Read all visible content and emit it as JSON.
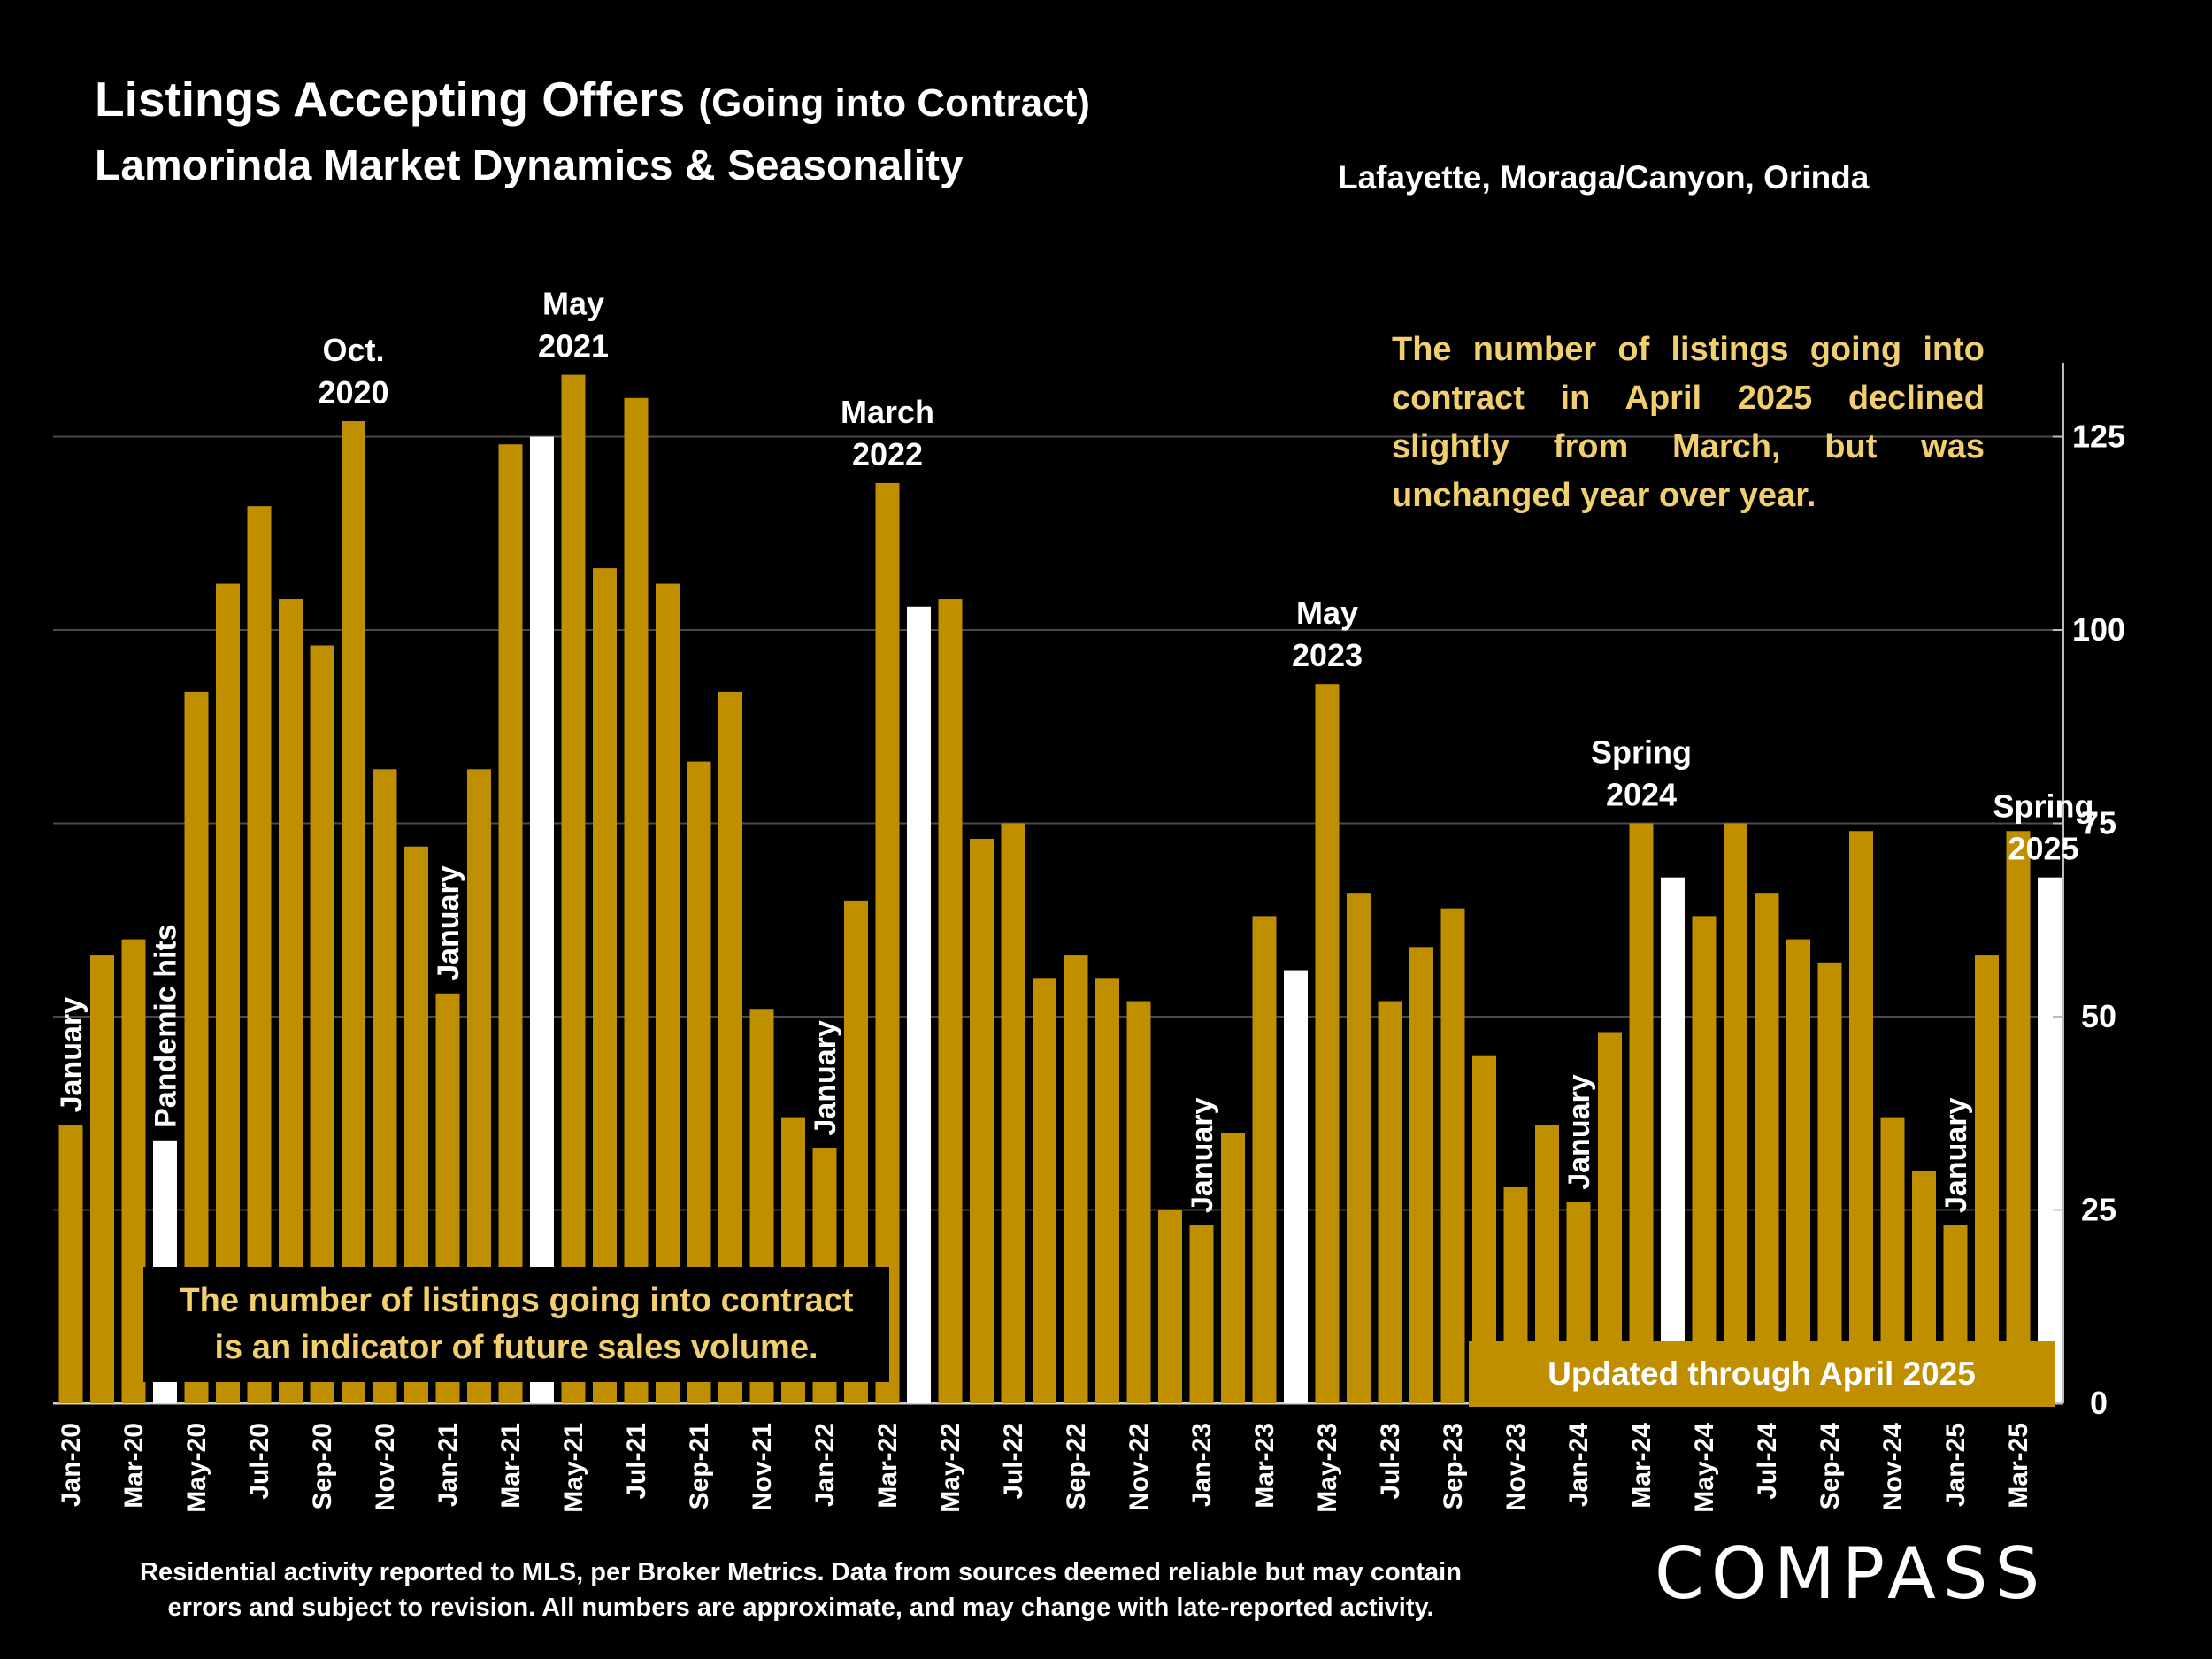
{
  "header": {
    "title_main": "Listings Accepting Offers",
    "title_paren": "(Going into Contract)",
    "subtitle": "Lamorinda Market Dynamics & Seasonality",
    "region": "Lafayette, Moraga/Canyon, Orinda"
  },
  "notes": {
    "top": "The number of listings going into contract in April 2025 declined slightly from March, but was unchanged year over year.",
    "bottom_line1": "The number of listings going into contract",
    "bottom_line2": "is an indicator of future sales volume.",
    "updated": "Updated through April 2025"
  },
  "footer": {
    "line1": "Residential activity reported to MLS, per Broker Metrics. Data from sources deemed reliable but may contain",
    "line2": "errors and subject to revision. All numbers are approximate, and may change with late-reported activity.",
    "logo": "COMPASS"
  },
  "colors": {
    "bar": "#bf8f00",
    "highlight": "#ffffff",
    "note_text": "#f2cf6e",
    "background": "#000000"
  },
  "chart_data": {
    "type": "bar",
    "x": [
      "Jan-20",
      "Feb-20",
      "Mar-20",
      "Apr-20",
      "May-20",
      "Jun-20",
      "Jul-20",
      "Aug-20",
      "Sep-20",
      "Oct-20",
      "Nov-20",
      "Dec-20",
      "Jan-21",
      "Feb-21",
      "Mar-21",
      "Apr-21",
      "May-21",
      "Jun-21",
      "Jul-21",
      "Aug-21",
      "Sep-21",
      "Oct-21",
      "Nov-21",
      "Dec-21",
      "Jan-22",
      "Feb-22",
      "Mar-22",
      "Apr-22",
      "May-22",
      "Jun-22",
      "Jul-22",
      "Aug-22",
      "Sep-22",
      "Oct-22",
      "Nov-22",
      "Dec-22",
      "Jan-23",
      "Feb-23",
      "Mar-23",
      "Apr-23",
      "May-23",
      "Jun-23",
      "Jul-23",
      "Aug-23",
      "Sep-23",
      "Oct-23",
      "Nov-23",
      "Dec-23",
      "Jan-24",
      "Feb-24",
      "Mar-24",
      "Apr-24",
      "May-24",
      "Jun-24",
      "Jul-24",
      "Aug-24",
      "Sep-24",
      "Oct-24",
      "Nov-24",
      "Dec-24",
      "Jan-25",
      "Feb-25",
      "Mar-25",
      "Apr-25"
    ],
    "values": [
      36,
      58,
      60,
      34,
      92,
      106,
      116,
      104,
      98,
      127,
      82,
      72,
      53,
      82,
      124,
      125,
      133,
      108,
      130,
      106,
      83,
      92,
      51,
      37,
      33,
      65,
      119,
      103,
      104,
      73,
      75,
      55,
      58,
      55,
      52,
      25,
      23,
      35,
      63,
      56,
      93,
      66,
      52,
      59,
      64,
      45,
      28,
      36,
      26,
      48,
      75,
      68,
      63,
      75,
      66,
      60,
      57,
      74,
      37,
      30,
      23,
      58,
      74,
      68
    ],
    "highlighted": [
      "Apr-20",
      "Apr-21",
      "Apr-22",
      "Apr-23",
      "Apr-24",
      "Apr-25"
    ],
    "tick_labels": [
      "Jan-20",
      "Mar-20",
      "May-20",
      "Jul-20",
      "Sep-20",
      "Nov-20",
      "Jan-21",
      "Mar-21",
      "May-21",
      "Jul-21",
      "Sep-21",
      "Nov-21",
      "Jan-22",
      "Mar-22",
      "May-22",
      "Jul-22",
      "Sep-22",
      "Nov-22",
      "Jan-23",
      "Mar-23",
      "May-23",
      "Jul-23",
      "Sep-23",
      "Nov-23",
      "Jan-24",
      "Mar-24",
      "May-24",
      "Jul-24",
      "Sep-24",
      "Nov-24",
      "Jan-25",
      "Mar-25"
    ],
    "y_ticks": [
      0,
      25,
      50,
      75,
      100,
      125
    ],
    "ylim": [
      0,
      135
    ],
    "y_axis_side": "right",
    "grid": true,
    "annotations": [
      {
        "at": "Jan-20",
        "text": "January",
        "orientation": "vertical"
      },
      {
        "at": "Apr-20",
        "text": "Pandemic  hits",
        "orientation": "vertical"
      },
      {
        "at": "Jan-21",
        "text": "January",
        "orientation": "vertical"
      },
      {
        "at": "Jan-22",
        "text": "January",
        "orientation": "vertical"
      },
      {
        "at": "Jan-23",
        "text": "January",
        "orientation": "vertical"
      },
      {
        "at": "Jan-24",
        "text": "January",
        "orientation": "vertical"
      },
      {
        "at": "Jan-25",
        "text": "January",
        "orientation": "vertical"
      },
      {
        "at": "Oct-20",
        "lines": [
          "Oct.",
          "2020"
        ],
        "orientation": "horizontal"
      },
      {
        "at": "May-21",
        "lines": [
          "May",
          "2021"
        ],
        "orientation": "horizontal"
      },
      {
        "at": "Mar-22",
        "lines": [
          "March",
          "2022"
        ],
        "orientation": "horizontal"
      },
      {
        "at": "May-23",
        "lines": [
          "May",
          "2023"
        ],
        "orientation": "horizontal"
      },
      {
        "at": "Mar-24",
        "lines": [
          "Spring",
          "2024"
        ],
        "orientation": "horizontal"
      },
      {
        "at": "Apr-25",
        "lines": [
          "Spring",
          "2025"
        ],
        "orientation": "horizontal"
      }
    ]
  }
}
